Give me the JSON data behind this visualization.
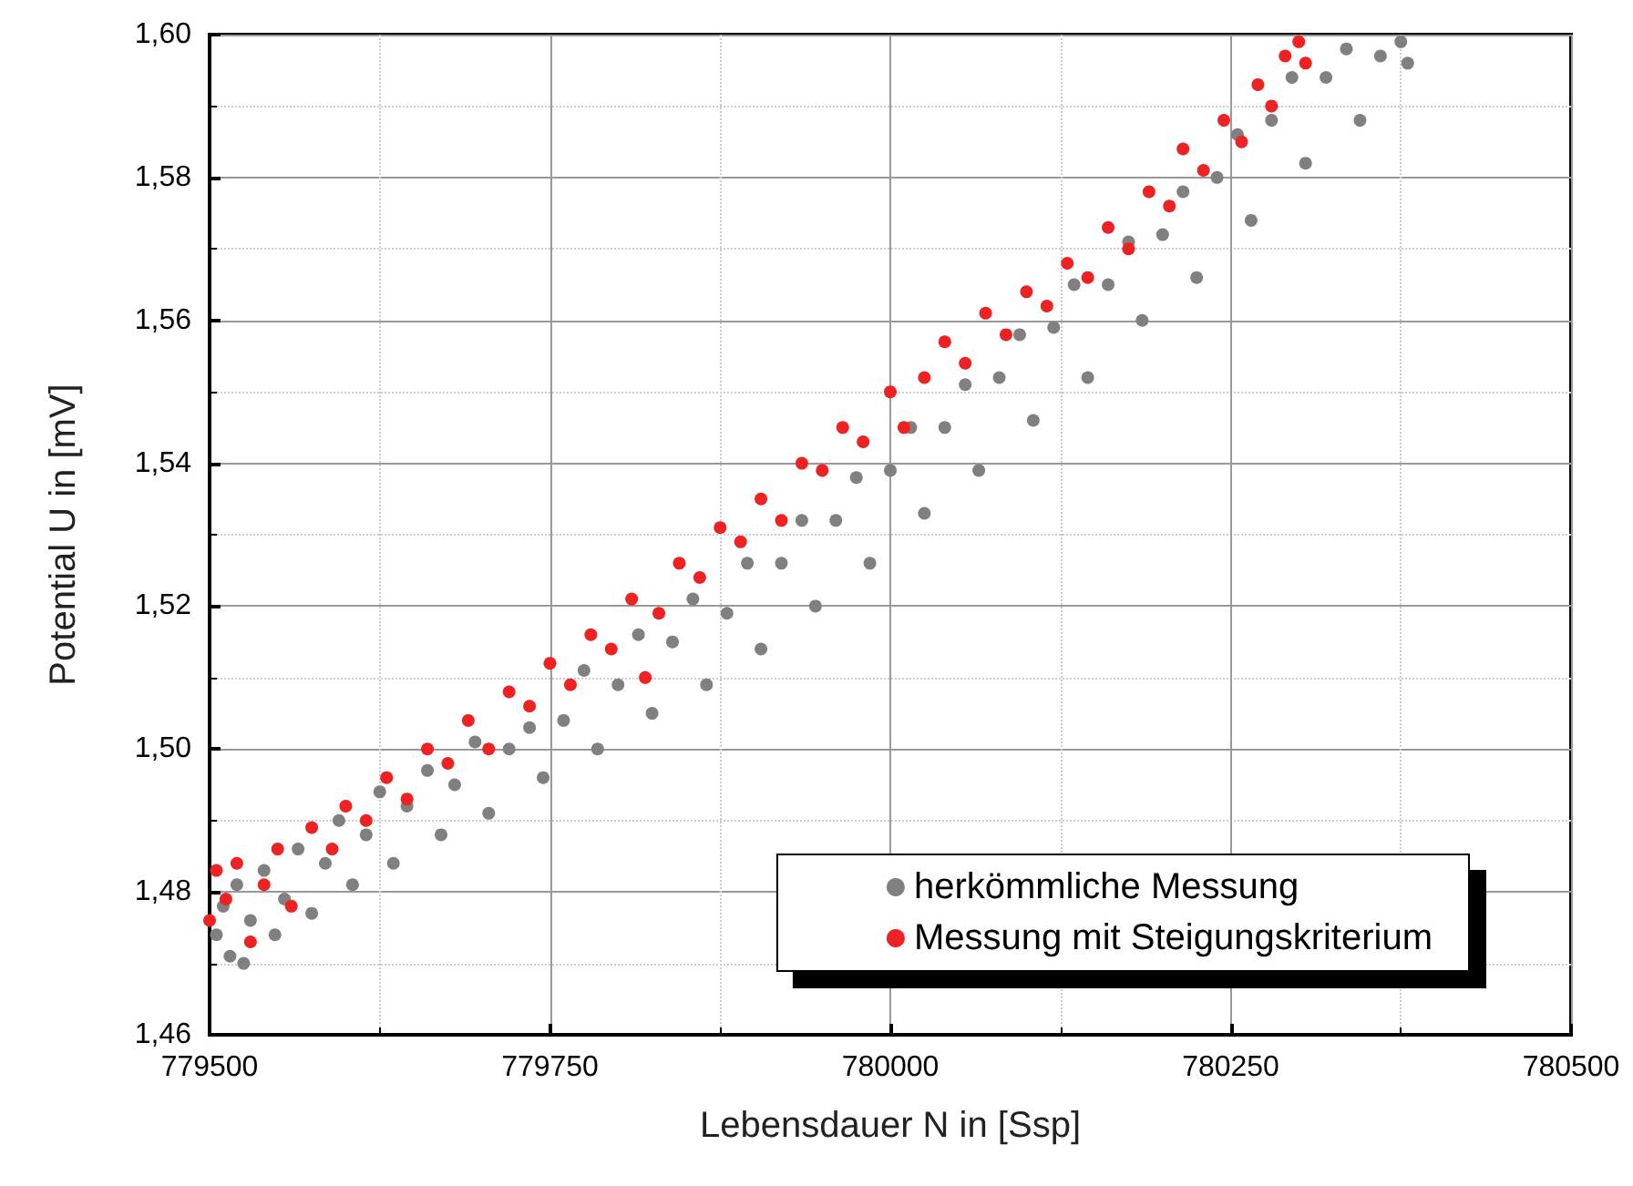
{
  "chart_data": {
    "type": "scatter",
    "xlabel": "Lebensdauer N in [Ssp]",
    "ylabel": "Potential U in [mV]",
    "xlim": [
      779500,
      780500
    ],
    "xticks": [
      779500,
      779750,
      780000,
      780250,
      780500
    ],
    "ylim": [
      1.46,
      1.6
    ],
    "yticks": [
      {
        "value": 1.46,
        "label": "1,46"
      },
      {
        "value": 1.48,
        "label": "1,48"
      },
      {
        "value": 1.5,
        "label": "1,50"
      },
      {
        "value": 1.52,
        "label": "1,52"
      },
      {
        "value": 1.54,
        "label": "1,54"
      },
      {
        "value": 1.56,
        "label": "1,56"
      },
      {
        "value": 1.58,
        "label": "1,58"
      },
      {
        "value": 1.6,
        "label": "1,60"
      }
    ],
    "grid": true,
    "legend": "bottom right",
    "marker": "circle",
    "series": [
      {
        "name": "herkömmliche Messung",
        "color": "#808080",
        "x": [
          779505,
          779510,
          779515,
          779520,
          779525,
          779530,
          779540,
          779548,
          779555,
          779565,
          779575,
          779585,
          779595,
          779605,
          779615,
          779625,
          779635,
          779645,
          779660,
          779670,
          779680,
          779695,
          779705,
          779720,
          779735,
          779745,
          779760,
          779775,
          779785,
          779800,
          779815,
          779825,
          779840,
          779855,
          779865,
          779880,
          779895,
          779905,
          779920,
          779935,
          779945,
          779960,
          779975,
          779985,
          780000,
          780015,
          780025,
          780040,
          780055,
          780065,
          780080,
          780095,
          780105,
          780120,
          780135,
          780145,
          780160,
          780175,
          780185,
          780200,
          780215,
          780225,
          780240,
          780255,
          780265,
          780280,
          780295,
          780305,
          780320,
          780335,
          780345,
          780360,
          780375,
          780380
        ],
        "values": [
          1.474,
          1.478,
          1.471,
          1.481,
          1.47,
          1.476,
          1.483,
          1.474,
          1.479,
          1.486,
          1.477,
          1.484,
          1.49,
          1.481,
          1.488,
          1.494,
          1.484,
          1.492,
          1.497,
          1.488,
          1.495,
          1.501,
          1.491,
          1.5,
          1.503,
          1.496,
          1.504,
          1.511,
          1.5,
          1.509,
          1.516,
          1.505,
          1.515,
          1.521,
          1.509,
          1.519,
          1.526,
          1.514,
          1.526,
          1.532,
          1.52,
          1.532,
          1.538,
          1.526,
          1.539,
          1.545,
          1.533,
          1.545,
          1.551,
          1.539,
          1.552,
          1.558,
          1.546,
          1.559,
          1.565,
          1.552,
          1.565,
          1.571,
          1.56,
          1.572,
          1.578,
          1.566,
          1.58,
          1.586,
          1.574,
          1.588,
          1.594,
          1.582,
          1.594,
          1.598,
          1.588,
          1.597,
          1.599,
          1.596
        ]
      },
      {
        "name": "Messung mit Steigungskriterium",
        "color": "#ee2222",
        "x": [
          779500,
          779505,
          779512,
          779520,
          779530,
          779540,
          779550,
          779560,
          779575,
          779590,
          779600,
          779615,
          779630,
          779645,
          779660,
          779675,
          779690,
          779705,
          779720,
          779735,
          779750,
          779765,
          779780,
          779795,
          779810,
          779820,
          779830,
          779845,
          779860,
          779875,
          779890,
          779905,
          779920,
          779935,
          779950,
          779965,
          779980,
          780000,
          780010,
          780025,
          780040,
          780055,
          780070,
          780085,
          780100,
          780115,
          780130,
          780145,
          780160,
          780175,
          780190,
          780205,
          780215,
          780230,
          780245,
          780258,
          780270,
          780280,
          780290,
          780300,
          780305
        ],
        "values": [
          1.476,
          1.483,
          1.479,
          1.484,
          1.473,
          1.481,
          1.486,
          1.478,
          1.489,
          1.486,
          1.492,
          1.49,
          1.496,
          1.493,
          1.5,
          1.498,
          1.504,
          1.5,
          1.508,
          1.506,
          1.512,
          1.509,
          1.516,
          1.514,
          1.521,
          1.51,
          1.519,
          1.526,
          1.524,
          1.531,
          1.529,
          1.535,
          1.532,
          1.54,
          1.539,
          1.545,
          1.543,
          1.55,
          1.545,
          1.552,
          1.557,
          1.554,
          1.561,
          1.558,
          1.564,
          1.562,
          1.568,
          1.566,
          1.573,
          1.57,
          1.578,
          1.576,
          1.584,
          1.581,
          1.588,
          1.585,
          1.593,
          1.59,
          1.597,
          1.599,
          1.596
        ]
      }
    ]
  }
}
